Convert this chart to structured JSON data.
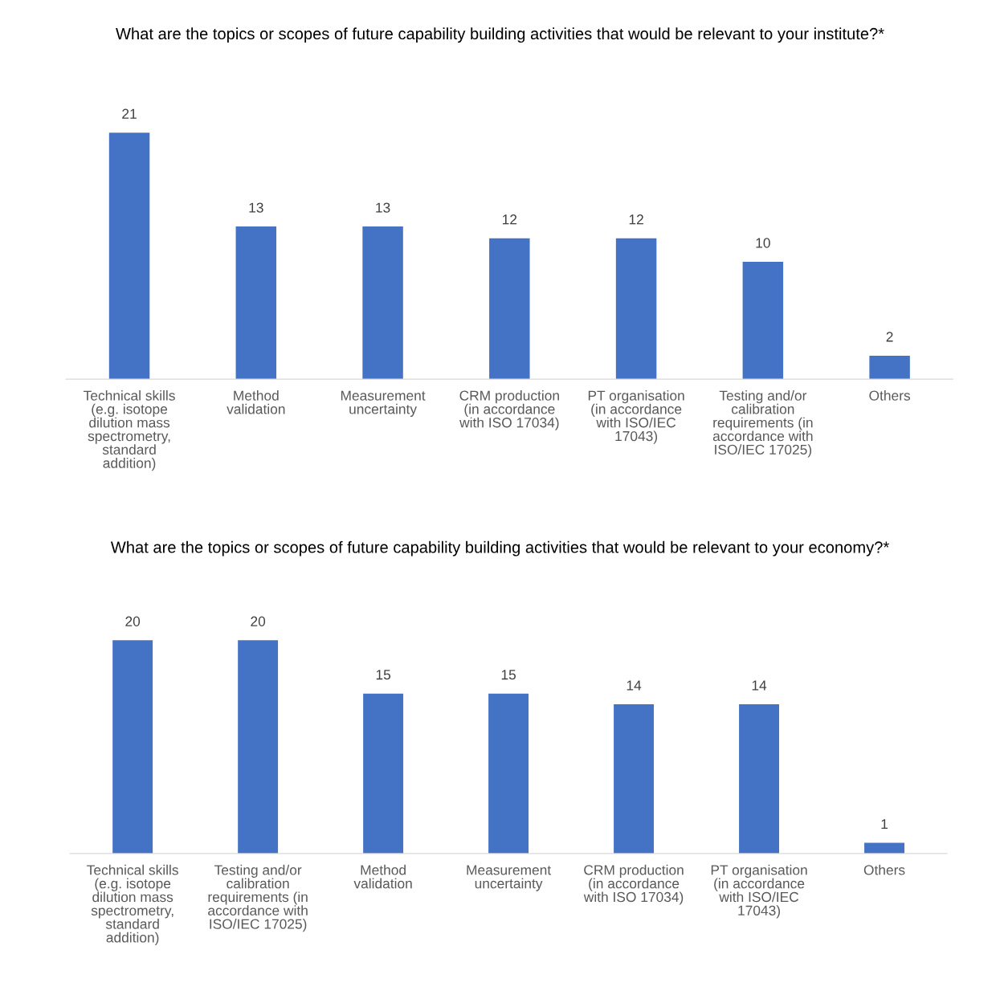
{
  "chart_data": [
    {
      "type": "bar",
      "title": "What are the topics or scopes of future capability building activities that would be relevant to your institute?*",
      "categories": [
        "Technical skills\n(e.g. isotope\ndilution mass\nspectrometry,\nstandard\naddition)",
        "Method\nvalidation",
        "Measurement\nuncertainty",
        "CRM production\n(in accordance\nwith ISO 17034)",
        "PT organisation\n(in accordance\nwith ISO/IEC\n17043)",
        "Testing and/or\ncalibration\nrequirements (in\naccordance with\nISO/IEC 17025)",
        "Others"
      ],
      "values": [
        21,
        13,
        13,
        12,
        12,
        10,
        2
      ],
      "color": "#4472c4",
      "data_labels": true,
      "grid": false,
      "legend": false
    },
    {
      "type": "bar",
      "title": "What are the topics or scopes of future capability building activities that would be relevant to your economy?*",
      "categories": [
        "Technical skills\n(e.g. isotope\ndilution mass\nspectrometry,\nstandard\naddition)",
        "Testing and/or\ncalibration\nrequirements (in\naccordance with\nISO/IEC 17025)",
        "Method\nvalidation",
        "Measurement\nuncertainty",
        "CRM production\n(in accordance\nwith ISO 17034)",
        "PT organisation\n(in accordance\nwith ISO/IEC\n17043)",
        "Others"
      ],
      "values": [
        20,
        20,
        15,
        15,
        14,
        14,
        1
      ],
      "color": "#4472c4",
      "data_labels": true,
      "grid": false,
      "legend": false
    }
  ]
}
